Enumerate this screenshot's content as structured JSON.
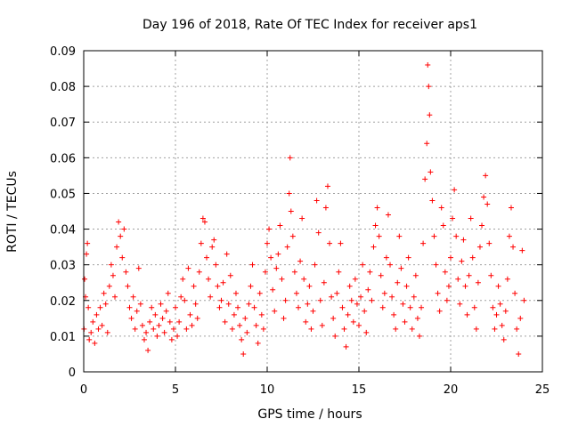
{
  "chart_data": {
    "type": "scatter",
    "title": "Day 196 of 2018, Rate Of TEC Index for receiver aps1",
    "xlabel": "GPS time / hours",
    "ylabel": "ROTI / TECUs",
    "xlim": [
      0,
      25
    ],
    "ylim": [
      0,
      0.09
    ],
    "x_ticks": [
      "0",
      "5",
      "10",
      "15",
      "20",
      "25"
    ],
    "y_ticks": [
      "0",
      "0.01",
      "0.02",
      "0.03",
      "0.04",
      "0.05",
      "0.06",
      "0.07",
      "0.08",
      "0.09"
    ],
    "grid": true,
    "marker": "plus",
    "color": "#ff0000",
    "series": [
      {
        "points": [
          [
            0.02,
            0.012
          ],
          [
            0.05,
            0.026
          ],
          [
            0.1,
            0.021
          ],
          [
            0.15,
            0.033
          ],
          [
            0.2,
            0.036
          ],
          [
            0.25,
            0.018
          ],
          [
            0.3,
            0.009
          ],
          [
            0.4,
            0.011
          ],
          [
            0.5,
            0.014
          ],
          [
            0.6,
            0.008
          ],
          [
            0.7,
            0.016
          ],
          [
            0.8,
            0.012
          ],
          [
            0.9,
            0.018
          ],
          [
            1.0,
            0.013
          ],
          [
            1.1,
            0.022
          ],
          [
            1.2,
            0.019
          ],
          [
            1.3,
            0.011
          ],
          [
            1.4,
            0.024
          ],
          [
            1.5,
            0.03
          ],
          [
            1.6,
            0.027
          ],
          [
            1.7,
            0.021
          ],
          [
            1.8,
            0.035
          ],
          [
            1.9,
            0.042
          ],
          [
            2.0,
            0.038
          ],
          [
            2.1,
            0.032
          ],
          [
            2.2,
            0.04
          ],
          [
            2.3,
            0.028
          ],
          [
            2.4,
            0.024
          ],
          [
            2.5,
            0.018
          ],
          [
            2.6,
            0.015
          ],
          [
            2.7,
            0.021
          ],
          [
            2.8,
            0.012
          ],
          [
            2.9,
            0.017
          ],
          [
            3.0,
            0.029
          ],
          [
            3.1,
            0.019
          ],
          [
            3.2,
            0.013
          ],
          [
            3.3,
            0.009
          ],
          [
            3.4,
            0.011
          ],
          [
            3.5,
            0.006
          ],
          [
            3.6,
            0.014
          ],
          [
            3.7,
            0.018
          ],
          [
            3.8,
            0.012
          ],
          [
            3.9,
            0.016
          ],
          [
            4.0,
            0.01
          ],
          [
            4.1,
            0.013
          ],
          [
            4.2,
            0.019
          ],
          [
            4.3,
            0.015
          ],
          [
            4.4,
            0.011
          ],
          [
            4.5,
            0.017
          ],
          [
            4.6,
            0.022
          ],
          [
            4.7,
            0.014
          ],
          [
            4.8,
            0.009
          ],
          [
            4.9,
            0.012
          ],
          [
            5.0,
            0.018
          ],
          [
            5.1,
            0.01
          ],
          [
            5.2,
            0.014
          ],
          [
            5.3,
            0.021
          ],
          [
            5.4,
            0.026
          ],
          [
            5.5,
            0.02
          ],
          [
            5.6,
            0.012
          ],
          [
            5.7,
            0.029
          ],
          [
            5.8,
            0.016
          ],
          [
            5.9,
            0.013
          ],
          [
            6.0,
            0.024
          ],
          [
            6.1,
            0.019
          ],
          [
            6.2,
            0.015
          ],
          [
            6.3,
            0.028
          ],
          [
            6.4,
            0.036
          ],
          [
            6.5,
            0.043
          ],
          [
            6.6,
            0.042
          ],
          [
            6.7,
            0.032
          ],
          [
            6.8,
            0.026
          ],
          [
            6.9,
            0.021
          ],
          [
            7.0,
            0.035
          ],
          [
            7.1,
            0.037
          ],
          [
            7.2,
            0.03
          ],
          [
            7.3,
            0.024
          ],
          [
            7.4,
            0.018
          ],
          [
            7.5,
            0.02
          ],
          [
            7.6,
            0.025
          ],
          [
            7.7,
            0.014
          ],
          [
            7.8,
            0.033
          ],
          [
            7.9,
            0.019
          ],
          [
            8.0,
            0.027
          ],
          [
            8.1,
            0.012
          ],
          [
            8.2,
            0.016
          ],
          [
            8.3,
            0.022
          ],
          [
            8.4,
            0.018
          ],
          [
            8.5,
            0.013
          ],
          [
            8.6,
            0.009
          ],
          [
            8.7,
            0.005
          ],
          [
            8.8,
            0.015
          ],
          [
            8.9,
            0.011
          ],
          [
            9.0,
            0.019
          ],
          [
            9.1,
            0.024
          ],
          [
            9.2,
            0.03
          ],
          [
            9.3,
            0.018
          ],
          [
            9.4,
            0.013
          ],
          [
            9.5,
            0.008
          ],
          [
            9.6,
            0.022
          ],
          [
            9.7,
            0.016
          ],
          [
            9.8,
            0.012
          ],
          [
            9.9,
            0.028
          ],
          [
            10.0,
            0.036
          ],
          [
            10.1,
            0.04
          ],
          [
            10.2,
            0.032
          ],
          [
            10.3,
            0.023
          ],
          [
            10.4,
            0.017
          ],
          [
            10.5,
            0.029
          ],
          [
            10.6,
            0.033
          ],
          [
            10.7,
            0.041
          ],
          [
            10.8,
            0.026
          ],
          [
            10.9,
            0.015
          ],
          [
            11.0,
            0.02
          ],
          [
            11.1,
            0.035
          ],
          [
            11.2,
            0.05
          ],
          [
            11.25,
            0.06
          ],
          [
            11.3,
            0.045
          ],
          [
            11.4,
            0.038
          ],
          [
            11.5,
            0.028
          ],
          [
            11.6,
            0.022
          ],
          [
            11.7,
            0.018
          ],
          [
            11.8,
            0.031
          ],
          [
            11.9,
            0.043
          ],
          [
            12.0,
            0.026
          ],
          [
            12.1,
            0.014
          ],
          [
            12.2,
            0.019
          ],
          [
            12.3,
            0.024
          ],
          [
            12.4,
            0.012
          ],
          [
            12.5,
            0.017
          ],
          [
            12.6,
            0.03
          ],
          [
            12.7,
            0.048
          ],
          [
            12.8,
            0.039
          ],
          [
            12.9,
            0.02
          ],
          [
            13.0,
            0.013
          ],
          [
            13.1,
            0.025
          ],
          [
            13.2,
            0.046
          ],
          [
            13.3,
            0.052
          ],
          [
            13.4,
            0.036
          ],
          [
            13.5,
            0.021
          ],
          [
            13.6,
            0.015
          ],
          [
            13.7,
            0.01
          ],
          [
            13.8,
            0.022
          ],
          [
            13.9,
            0.028
          ],
          [
            14.0,
            0.036
          ],
          [
            14.1,
            0.018
          ],
          [
            14.2,
            0.012
          ],
          [
            14.3,
            0.007
          ],
          [
            14.4,
            0.016
          ],
          [
            14.5,
            0.024
          ],
          [
            14.6,
            0.02
          ],
          [
            14.7,
            0.014
          ],
          [
            14.8,
            0.026
          ],
          [
            14.9,
            0.019
          ],
          [
            15.0,
            0.013
          ],
          [
            15.1,
            0.021
          ],
          [
            15.2,
            0.03
          ],
          [
            15.3,
            0.017
          ],
          [
            15.4,
            0.011
          ],
          [
            15.5,
            0.023
          ],
          [
            15.6,
            0.028
          ],
          [
            15.7,
            0.02
          ],
          [
            15.8,
            0.035
          ],
          [
            15.9,
            0.041
          ],
          [
            16.0,
            0.046
          ],
          [
            16.1,
            0.038
          ],
          [
            16.2,
            0.027
          ],
          [
            16.3,
            0.018
          ],
          [
            16.4,
            0.022
          ],
          [
            16.5,
            0.032
          ],
          [
            16.6,
            0.044
          ],
          [
            16.7,
            0.03
          ],
          [
            16.8,
            0.021
          ],
          [
            16.9,
            0.016
          ],
          [
            17.0,
            0.012
          ],
          [
            17.1,
            0.025
          ],
          [
            17.2,
            0.038
          ],
          [
            17.3,
            0.029
          ],
          [
            17.4,
            0.019
          ],
          [
            17.5,
            0.014
          ],
          [
            17.6,
            0.024
          ],
          [
            17.7,
            0.032
          ],
          [
            17.8,
            0.018
          ],
          [
            17.9,
            0.012
          ],
          [
            18.0,
            0.021
          ],
          [
            18.1,
            0.027
          ],
          [
            18.2,
            0.015
          ],
          [
            18.3,
            0.01
          ],
          [
            18.4,
            0.018
          ],
          [
            18.5,
            0.036
          ],
          [
            18.6,
            0.054
          ],
          [
            18.7,
            0.064
          ],
          [
            18.75,
            0.086
          ],
          [
            18.8,
            0.08
          ],
          [
            18.85,
            0.072
          ],
          [
            18.9,
            0.056
          ],
          [
            19.0,
            0.048
          ],
          [
            19.1,
            0.038
          ],
          [
            19.2,
            0.03
          ],
          [
            19.3,
            0.022
          ],
          [
            19.4,
            0.017
          ],
          [
            19.5,
            0.046
          ],
          [
            19.6,
            0.041
          ],
          [
            19.7,
            0.028
          ],
          [
            19.8,
            0.02
          ],
          [
            19.9,
            0.024
          ],
          [
            20.0,
            0.032
          ],
          [
            20.1,
            0.043
          ],
          [
            20.2,
            0.051
          ],
          [
            20.3,
            0.038
          ],
          [
            20.4,
            0.026
          ],
          [
            20.5,
            0.019
          ],
          [
            20.6,
            0.031
          ],
          [
            20.7,
            0.037
          ],
          [
            20.8,
            0.024
          ],
          [
            20.9,
            0.016
          ],
          [
            21.0,
            0.027
          ],
          [
            21.1,
            0.043
          ],
          [
            21.2,
            0.032
          ],
          [
            21.3,
            0.018
          ],
          [
            21.4,
            0.012
          ],
          [
            21.5,
            0.025
          ],
          [
            21.6,
            0.035
          ],
          [
            21.7,
            0.041
          ],
          [
            21.8,
            0.049
          ],
          [
            21.9,
            0.055
          ],
          [
            22.0,
            0.047
          ],
          [
            22.1,
            0.036
          ],
          [
            22.2,
            0.027
          ],
          [
            22.3,
            0.018
          ],
          [
            22.4,
            0.012
          ],
          [
            22.5,
            0.016
          ],
          [
            22.6,
            0.024
          ],
          [
            22.7,
            0.019
          ],
          [
            22.8,
            0.013
          ],
          [
            22.9,
            0.009
          ],
          [
            23.0,
            0.017
          ],
          [
            23.1,
            0.026
          ],
          [
            23.2,
            0.038
          ],
          [
            23.3,
            0.046
          ],
          [
            23.4,
            0.035
          ],
          [
            23.5,
            0.022
          ],
          [
            23.6,
            0.012
          ],
          [
            23.7,
            0.005
          ],
          [
            23.8,
            0.015
          ],
          [
            23.9,
            0.034
          ],
          [
            24.0,
            0.02
          ]
        ]
      }
    ]
  }
}
